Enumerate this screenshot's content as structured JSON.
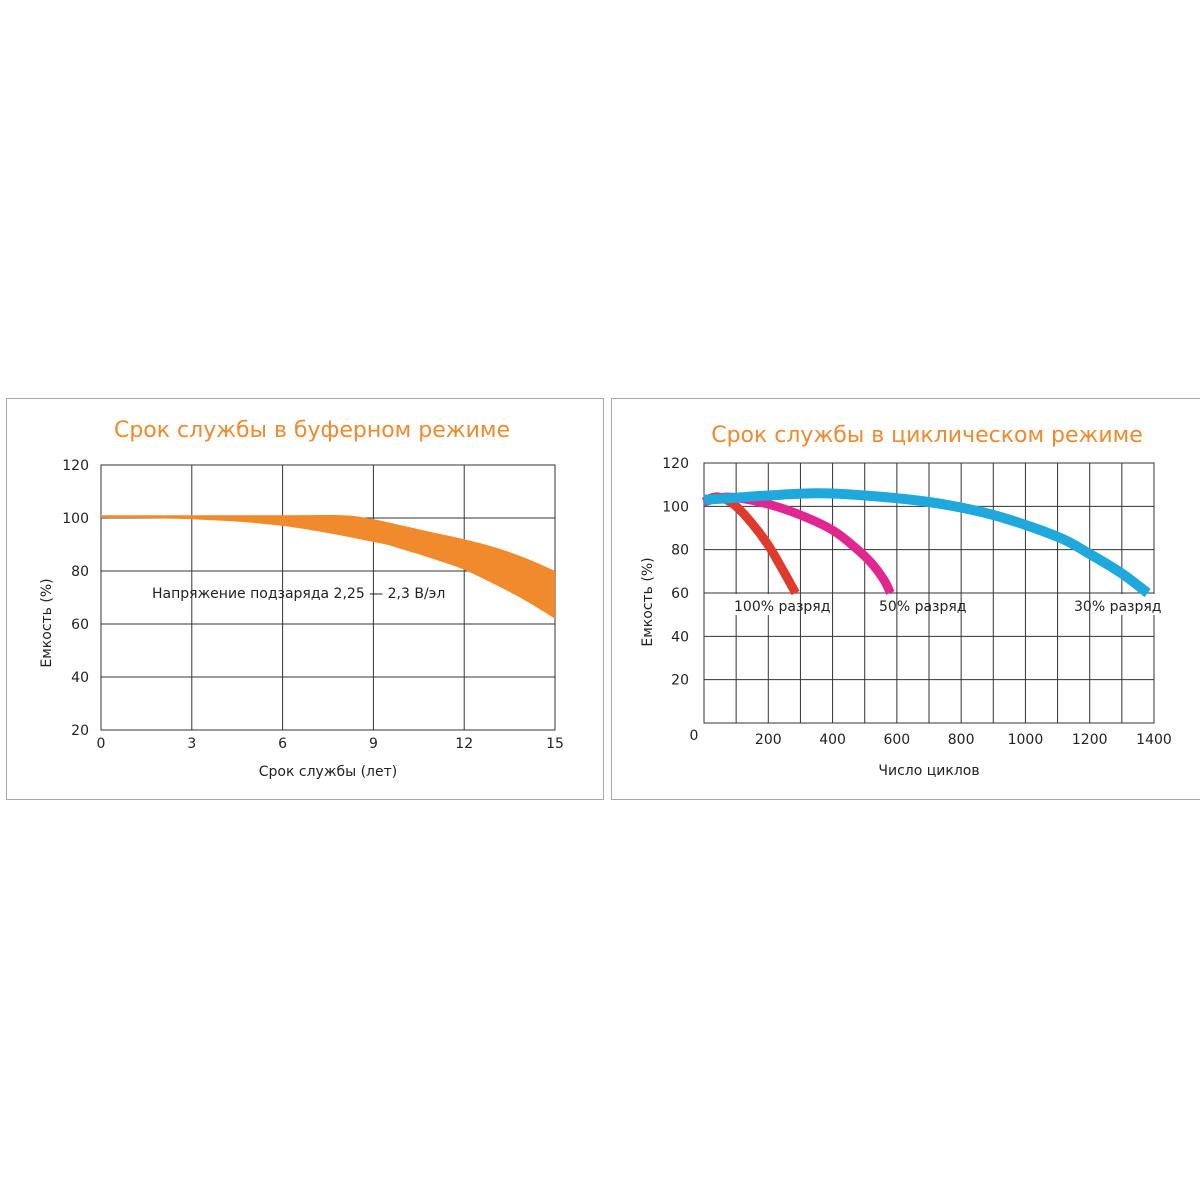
{
  "chart_data": [
    {
      "type": "area",
      "title": "Срок службы в буферном режиме",
      "xlabel": "Срок службы (лет)",
      "ylabel": "Емкость (%)",
      "x_ticks": [
        "0",
        "3",
        "6",
        "9",
        "12",
        "15"
      ],
      "y_ticks": [
        "20",
        "40",
        "60",
        "80",
        "100",
        "120"
      ],
      "xlim": [
        0,
        15
      ],
      "ylim": [
        20,
        120
      ],
      "grid": true,
      "annotation": "Напряжение подзаряда 2,25 — 2,3 В/эл",
      "color": "#f08a2c",
      "band": {
        "upper": [
          [
            0,
            101
          ],
          [
            3,
            101
          ],
          [
            6,
            101
          ],
          [
            8,
            101
          ],
          [
            9,
            99.5
          ],
          [
            10,
            97
          ],
          [
            11,
            94.5
          ],
          [
            12,
            92
          ],
          [
            13,
            89
          ],
          [
            14,
            85
          ],
          [
            15,
            80
          ]
        ],
        "lower": [
          [
            0,
            100
          ],
          [
            3,
            99.5
          ],
          [
            6,
            97
          ],
          [
            9,
            91
          ],
          [
            10,
            88
          ],
          [
            11,
            84.5
          ],
          [
            12,
            80.5
          ],
          [
            13,
            75
          ],
          [
            14,
            69
          ],
          [
            15,
            62
          ]
        ]
      }
    },
    {
      "type": "line",
      "title": "Срок службы в циклическом режиме",
      "xlabel": "Число циклов",
      "ylabel": "Емкость (%)",
      "x_ticks": [
        "0",
        "200",
        "400",
        "600",
        "800",
        "1000",
        "1200",
        "1400"
      ],
      "y_ticks": [
        "20",
        "40",
        "60",
        "80",
        "100",
        "120"
      ],
      "xlim": [
        0,
        1400
      ],
      "ylim": [
        0,
        120
      ],
      "grid": true,
      "series": [
        {
          "name": "100% разряд",
          "color": "#e03a2f",
          "points": [
            [
              0,
              102
            ],
            [
              25,
              104
            ],
            [
              55,
              104
            ],
            [
              100,
              100
            ],
            [
              150,
              92
            ],
            [
              200,
              82
            ],
            [
              240,
              72
            ],
            [
              270,
              64
            ],
            [
              285,
              60
            ]
          ]
        },
        {
          "name": "50% разряд",
          "color": "#e2268f",
          "points": [
            [
              0,
              102
            ],
            [
              50,
              104
            ],
            [
              100,
              104
            ],
            [
              200,
              101
            ],
            [
              300,
              96
            ],
            [
              400,
              89
            ],
            [
              470,
              81
            ],
            [
              520,
              74
            ],
            [
              560,
              66
            ],
            [
              580,
              60
            ]
          ]
        },
        {
          "name": "30% разряд",
          "color": "#1fa8dc",
          "points": [
            [
              0,
              103
            ],
            [
              100,
              104
            ],
            [
              200,
              105
            ],
            [
              350,
              106
            ],
            [
              500,
              105
            ],
            [
              700,
              102
            ],
            [
              900,
              96
            ],
            [
              1100,
              86
            ],
            [
              1200,
              78
            ],
            [
              1300,
              69
            ],
            [
              1380,
              60
            ]
          ]
        }
      ]
    }
  ]
}
